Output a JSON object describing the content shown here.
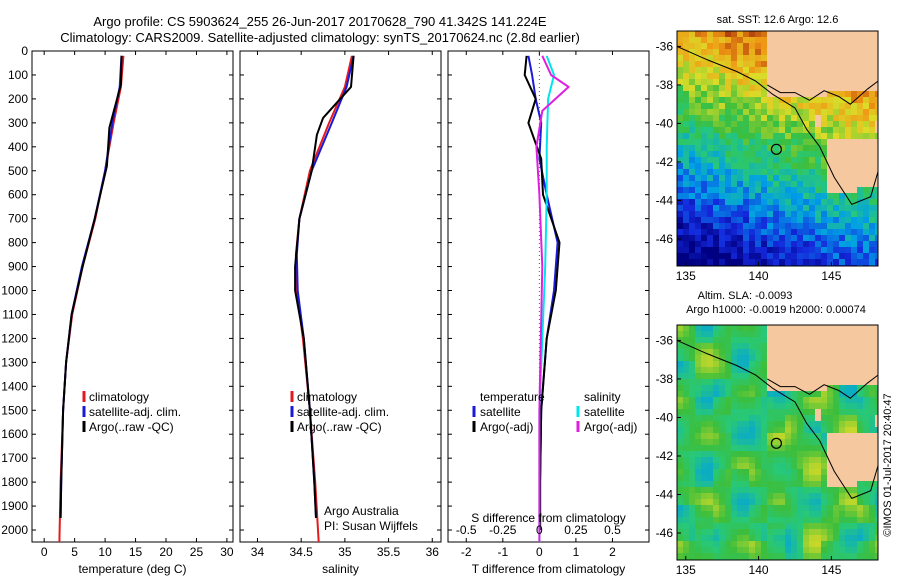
{
  "header": {
    "line1": "Argo profile: CS 5903624_255 26-Jun-2017 20170628_790 41.342S 141.224E",
    "line2": "Climatology: CARS2009. Satellite-adjusted climatology: synTS_20170624.nc (2.8d earlier)"
  },
  "colors": {
    "red": "#e41a1c",
    "blue": "#1a1ad8",
    "black": "#000000",
    "cyan": "#00e5ee",
    "magenta": "#e01ee0",
    "land": "#f5c8a0"
  },
  "chart_data": [
    {
      "type": "line",
      "xlabel": "temperature (deg C)",
      "ylabel": "",
      "xlim": [
        -2,
        31
      ],
      "ylim": [
        2050,
        0
      ],
      "xticks": [
        "0",
        "5",
        "10",
        "15",
        "20",
        "25",
        "30"
      ],
      "xtick_values": [
        0,
        5,
        10,
        15,
        20,
        25,
        30
      ],
      "yticks": [
        "0",
        "100",
        "200",
        "300",
        "400",
        "500",
        "600",
        "700",
        "800",
        "900",
        "1000",
        "1100",
        "1200",
        "1300",
        "1400",
        "1500",
        "1600",
        "1700",
        "1800",
        "1900",
        "2000"
      ],
      "ytick_values": [
        0,
        100,
        200,
        300,
        400,
        500,
        600,
        700,
        800,
        900,
        1000,
        1100,
        1200,
        1300,
        1400,
        1500,
        1600,
        1700,
        1800,
        1900,
        2000
      ],
      "legend": [
        "climatology",
        "satellite-adj. clim.",
        "Argo(..raw -QC)"
      ],
      "series": [
        {
          "name": "climatology",
          "color": "red",
          "depth": [
            20,
            150,
            300,
            500,
            700,
            900,
            1100,
            1300,
            1500,
            1800,
            2050
          ],
          "values": [
            13,
            12.6,
            11.4,
            10,
            8.4,
            6.3,
            4.6,
            3.6,
            3.1,
            2.7,
            2.5
          ]
        },
        {
          "name": "satellite-adj. clim.",
          "color": "blue",
          "depth": [
            20,
            150,
            300,
            500,
            700,
            900,
            1100,
            1300,
            1500,
            1800,
            1950
          ],
          "values": [
            12.7,
            12.4,
            11.2,
            10,
            8.3,
            6.2,
            4.5,
            3.6,
            3.1,
            2.8,
            2.7
          ]
        },
        {
          "name": "Argo(..raw -QC)",
          "color": "black",
          "depth": [
            20,
            140,
            320,
            480,
            700,
            900,
            1100,
            1300,
            1500,
            1800,
            1950
          ],
          "values": [
            12.7,
            12.6,
            10.7,
            10.3,
            8.3,
            6.3,
            4.5,
            3.6,
            3.1,
            2.8,
            2.7
          ]
        }
      ]
    },
    {
      "type": "line",
      "xlabel": "salinity",
      "xlim": [
        33.8,
        36.1
      ],
      "ylim": [
        2050,
        0
      ],
      "xticks": [
        "34",
        "34.5",
        "35",
        "35.5",
        "36"
      ],
      "xtick_values": [
        34,
        34.5,
        35,
        35.5,
        36
      ],
      "legend": [
        "climatology",
        "satellite-adj. clim.",
        "Argo(..raw -QC)"
      ],
      "annotations": [
        "Argo Australia",
        "PI: Susan Wijffels"
      ],
      "series": [
        {
          "name": "climatology",
          "color": "red",
          "depth": [
            20,
            150,
            300,
            500,
            700,
            850,
            1000,
            1200,
            1500,
            1800,
            2050
          ],
          "values": [
            35.08,
            35.0,
            34.82,
            34.6,
            34.48,
            34.44,
            34.45,
            34.52,
            34.6,
            34.66,
            34.7
          ]
        },
        {
          "name": "satellite-adj. clim.",
          "color": "blue",
          "depth": [
            20,
            150,
            300,
            500,
            700,
            850,
            1000,
            1200,
            1500,
            1800,
            1950
          ],
          "values": [
            35.1,
            35.02,
            34.85,
            34.62,
            34.48,
            34.45,
            34.46,
            34.53,
            34.6,
            34.65,
            34.67
          ]
        },
        {
          "name": "Argo(..raw -QC)",
          "color": "black",
          "depth": [
            20,
            150,
            280,
            350,
            500,
            700,
            900,
            1000,
            1200,
            1500,
            1800,
            1950
          ],
          "values": [
            35.1,
            35.07,
            34.75,
            34.68,
            34.62,
            34.48,
            34.43,
            34.43,
            34.53,
            34.6,
            34.65,
            34.67
          ]
        }
      ]
    },
    {
      "type": "line",
      "xlabel": "T difference from climatology",
      "xlim": [
        -2.5,
        3
      ],
      "ylim": [
        2050,
        0
      ],
      "xticks": [
        "-2",
        "-1",
        "0",
        "1",
        "2"
      ],
      "xtick_values": [
        -2,
        -1,
        0,
        1,
        2
      ],
      "top_axis_label": "S difference from climatology",
      "top_ticks": [
        "-0.5",
        "-0.25",
        "0",
        "0.25",
        "0.5"
      ],
      "top_tick_values": [
        -0.5,
        -0.25,
        0,
        0.25,
        0.5
      ],
      "legend_left_title": "temperature",
      "legend_right_title": "salinity",
      "legend": [
        "satellite",
        "Argo(-adj)",
        "satellite",
        "Argo(-adj)"
      ],
      "series": [
        {
          "name": "satellite",
          "quantity": "temperature",
          "color": "blue",
          "depth": [
            20,
            100,
            200,
            300,
            450,
            600,
            800,
            1000,
            1200,
            1500,
            1800,
            2000
          ],
          "values": [
            -0.3,
            -0.2,
            -0.1,
            0.05,
            0,
            0.2,
            0.5,
            0.4,
            0.2,
            0.05,
            0.02,
            0.02
          ]
        },
        {
          "name": "Argo(-adj)",
          "quantity": "temperature",
          "color": "black",
          "depth": [
            20,
            100,
            200,
            300,
            450,
            600,
            800,
            1000,
            1200,
            1500,
            1800,
            2000
          ],
          "values": [
            -0.35,
            -0.4,
            -0.1,
            -0.3,
            0.05,
            0.1,
            0.55,
            0.45,
            0.2,
            0.05,
            0.02,
            0.02
          ]
        },
        {
          "name": "satellite",
          "quantity": "salinity",
          "color": "cyan",
          "depth": [
            20,
            100,
            200,
            400,
            600,
            900,
            1200,
            1500,
            1800,
            2050
          ],
          "values": [
            0.05,
            0.1,
            0.06,
            0.05,
            0.05,
            0.04,
            0.02,
            0.0,
            0.0,
            0.0
          ]
        },
        {
          "name": "Argo(-adj)",
          "quantity": "salinity",
          "color": "magenta",
          "depth": [
            20,
            100,
            150,
            250,
            400,
            600,
            900,
            1200,
            1500,
            1800,
            2050
          ],
          "values": [
            0.02,
            0.08,
            0.2,
            0.02,
            -0.02,
            0.0,
            0.02,
            0.01,
            0.0,
            0.0,
            0.0
          ]
        }
      ]
    }
  ],
  "maps": [
    {
      "title": "sat. SST: 12.6 Argo: 12.6",
      "xticks": [
        "135",
        "140",
        "145"
      ],
      "yticks": [
        "-36",
        "-38",
        "-40",
        "-42",
        "-44",
        "-46"
      ],
      "palette": "sst"
    },
    {
      "title_line1": "Altim. SLA: -0.0093",
      "title_line2": "Argo h1000: -0.0019 h2000: 0.00074",
      "xticks": [
        "135",
        "140",
        "145"
      ],
      "yticks": [
        "-36",
        "-38",
        "-40",
        "-42",
        "-44",
        "-46"
      ],
      "palette": "sla"
    }
  ],
  "side_credit": "©IMOS 01-Jul-2017 20:40:47"
}
